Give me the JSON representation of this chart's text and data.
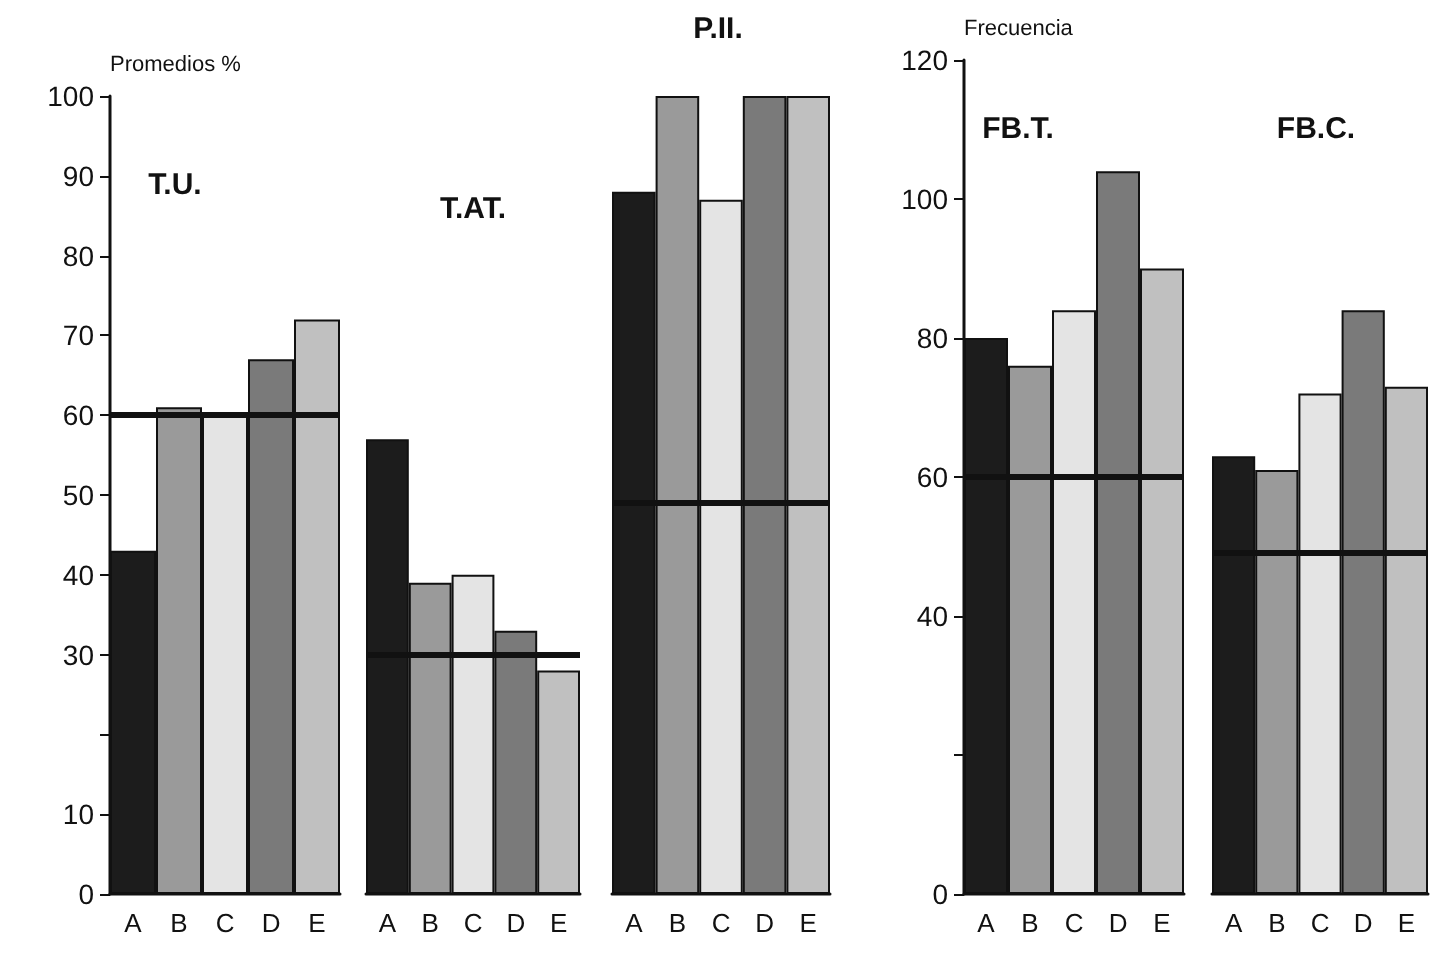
{
  "chart_data": [
    {
      "type": "bar",
      "title": "T.U.",
      "ylabel": "Promedios %",
      "categories": [
        "A",
        "B",
        "C",
        "D",
        "E"
      ],
      "values": [
        43,
        61,
        60,
        67,
        72
      ],
      "colors": [
        "#1c1c1c",
        "#9a9a9a",
        "#e4e4e4",
        "#7a7a7a",
        "#c0c0c0"
      ],
      "ylim": [
        0,
        100
      ],
      "yticks": [
        0,
        10,
        {
          "value": 20,
          "label": null
        },
        30,
        40,
        50,
        60,
        70,
        80,
        90,
        100
      ],
      "ref_lines": [
        {
          "axis": "y",
          "value": 60,
          "label": null,
          "color": "#111111"
        }
      ]
    },
    {
      "type": "bar",
      "title": "T.AT.",
      "categories": [
        "A",
        "B",
        "C",
        "D",
        "E"
      ],
      "values": [
        57,
        39,
        40,
        33,
        28
      ],
      "colors": [
        "#1c1c1c",
        "#9a9a9a",
        "#e4e4e4",
        "#7a7a7a",
        "#c0c0c0"
      ],
      "ylim": [
        0,
        100
      ],
      "tick_labels": "x",
      "ref_lines": [
        {
          "axis": "y",
          "value": 30,
          "label": null,
          "color": "#111111"
        }
      ]
    },
    {
      "type": "bar",
      "title": "P.II.",
      "categories": [
        "A",
        "B",
        "C",
        "D",
        "E"
      ],
      "values": [
        88,
        100,
        87,
        100,
        100
      ],
      "colors": [
        "#1c1c1c",
        "#9a9a9a",
        "#e4e4e4",
        "#7a7a7a",
        "#c0c0c0"
      ],
      "ylim": [
        0,
        100
      ],
      "tick_labels": "x",
      "ref_lines": [
        {
          "axis": "y",
          "value": 49,
          "label": null,
          "color": "#111111"
        }
      ]
    },
    {
      "type": "bar",
      "title": "FB.T.",
      "ylabel": "Frecuencia",
      "categories": [
        "A",
        "B",
        "C",
        "D",
        "E"
      ],
      "values": [
        80,
        76,
        84,
        104,
        90
      ],
      "colors": [
        "#1c1c1c",
        "#9a9a9a",
        "#e4e4e4",
        "#7a7a7a",
        "#c0c0c0"
      ],
      "ylim": [
        0,
        120
      ],
      "yticks": [
        0,
        {
          "value": 20,
          "label": null
        },
        40,
        60,
        80,
        100,
        120
      ],
      "ref_lines": [
        {
          "axis": "y",
          "value": 60,
          "label": null,
          "color": "#111111"
        }
      ]
    },
    {
      "type": "bar",
      "title": "FB.C.",
      "categories": [
        "A",
        "B",
        "C",
        "D",
        "E"
      ],
      "values": [
        63,
        61,
        72,
        84,
        73
      ],
      "colors": [
        "#1c1c1c",
        "#9a9a9a",
        "#e4e4e4",
        "#7a7a7a",
        "#c0c0c0"
      ],
      "ylim": [
        0,
        120
      ],
      "tick_labels": "x",
      "ref_lines": [
        {
          "axis": "y",
          "value": 49,
          "label": null,
          "color": "#111111"
        }
      ]
    }
  ]
}
